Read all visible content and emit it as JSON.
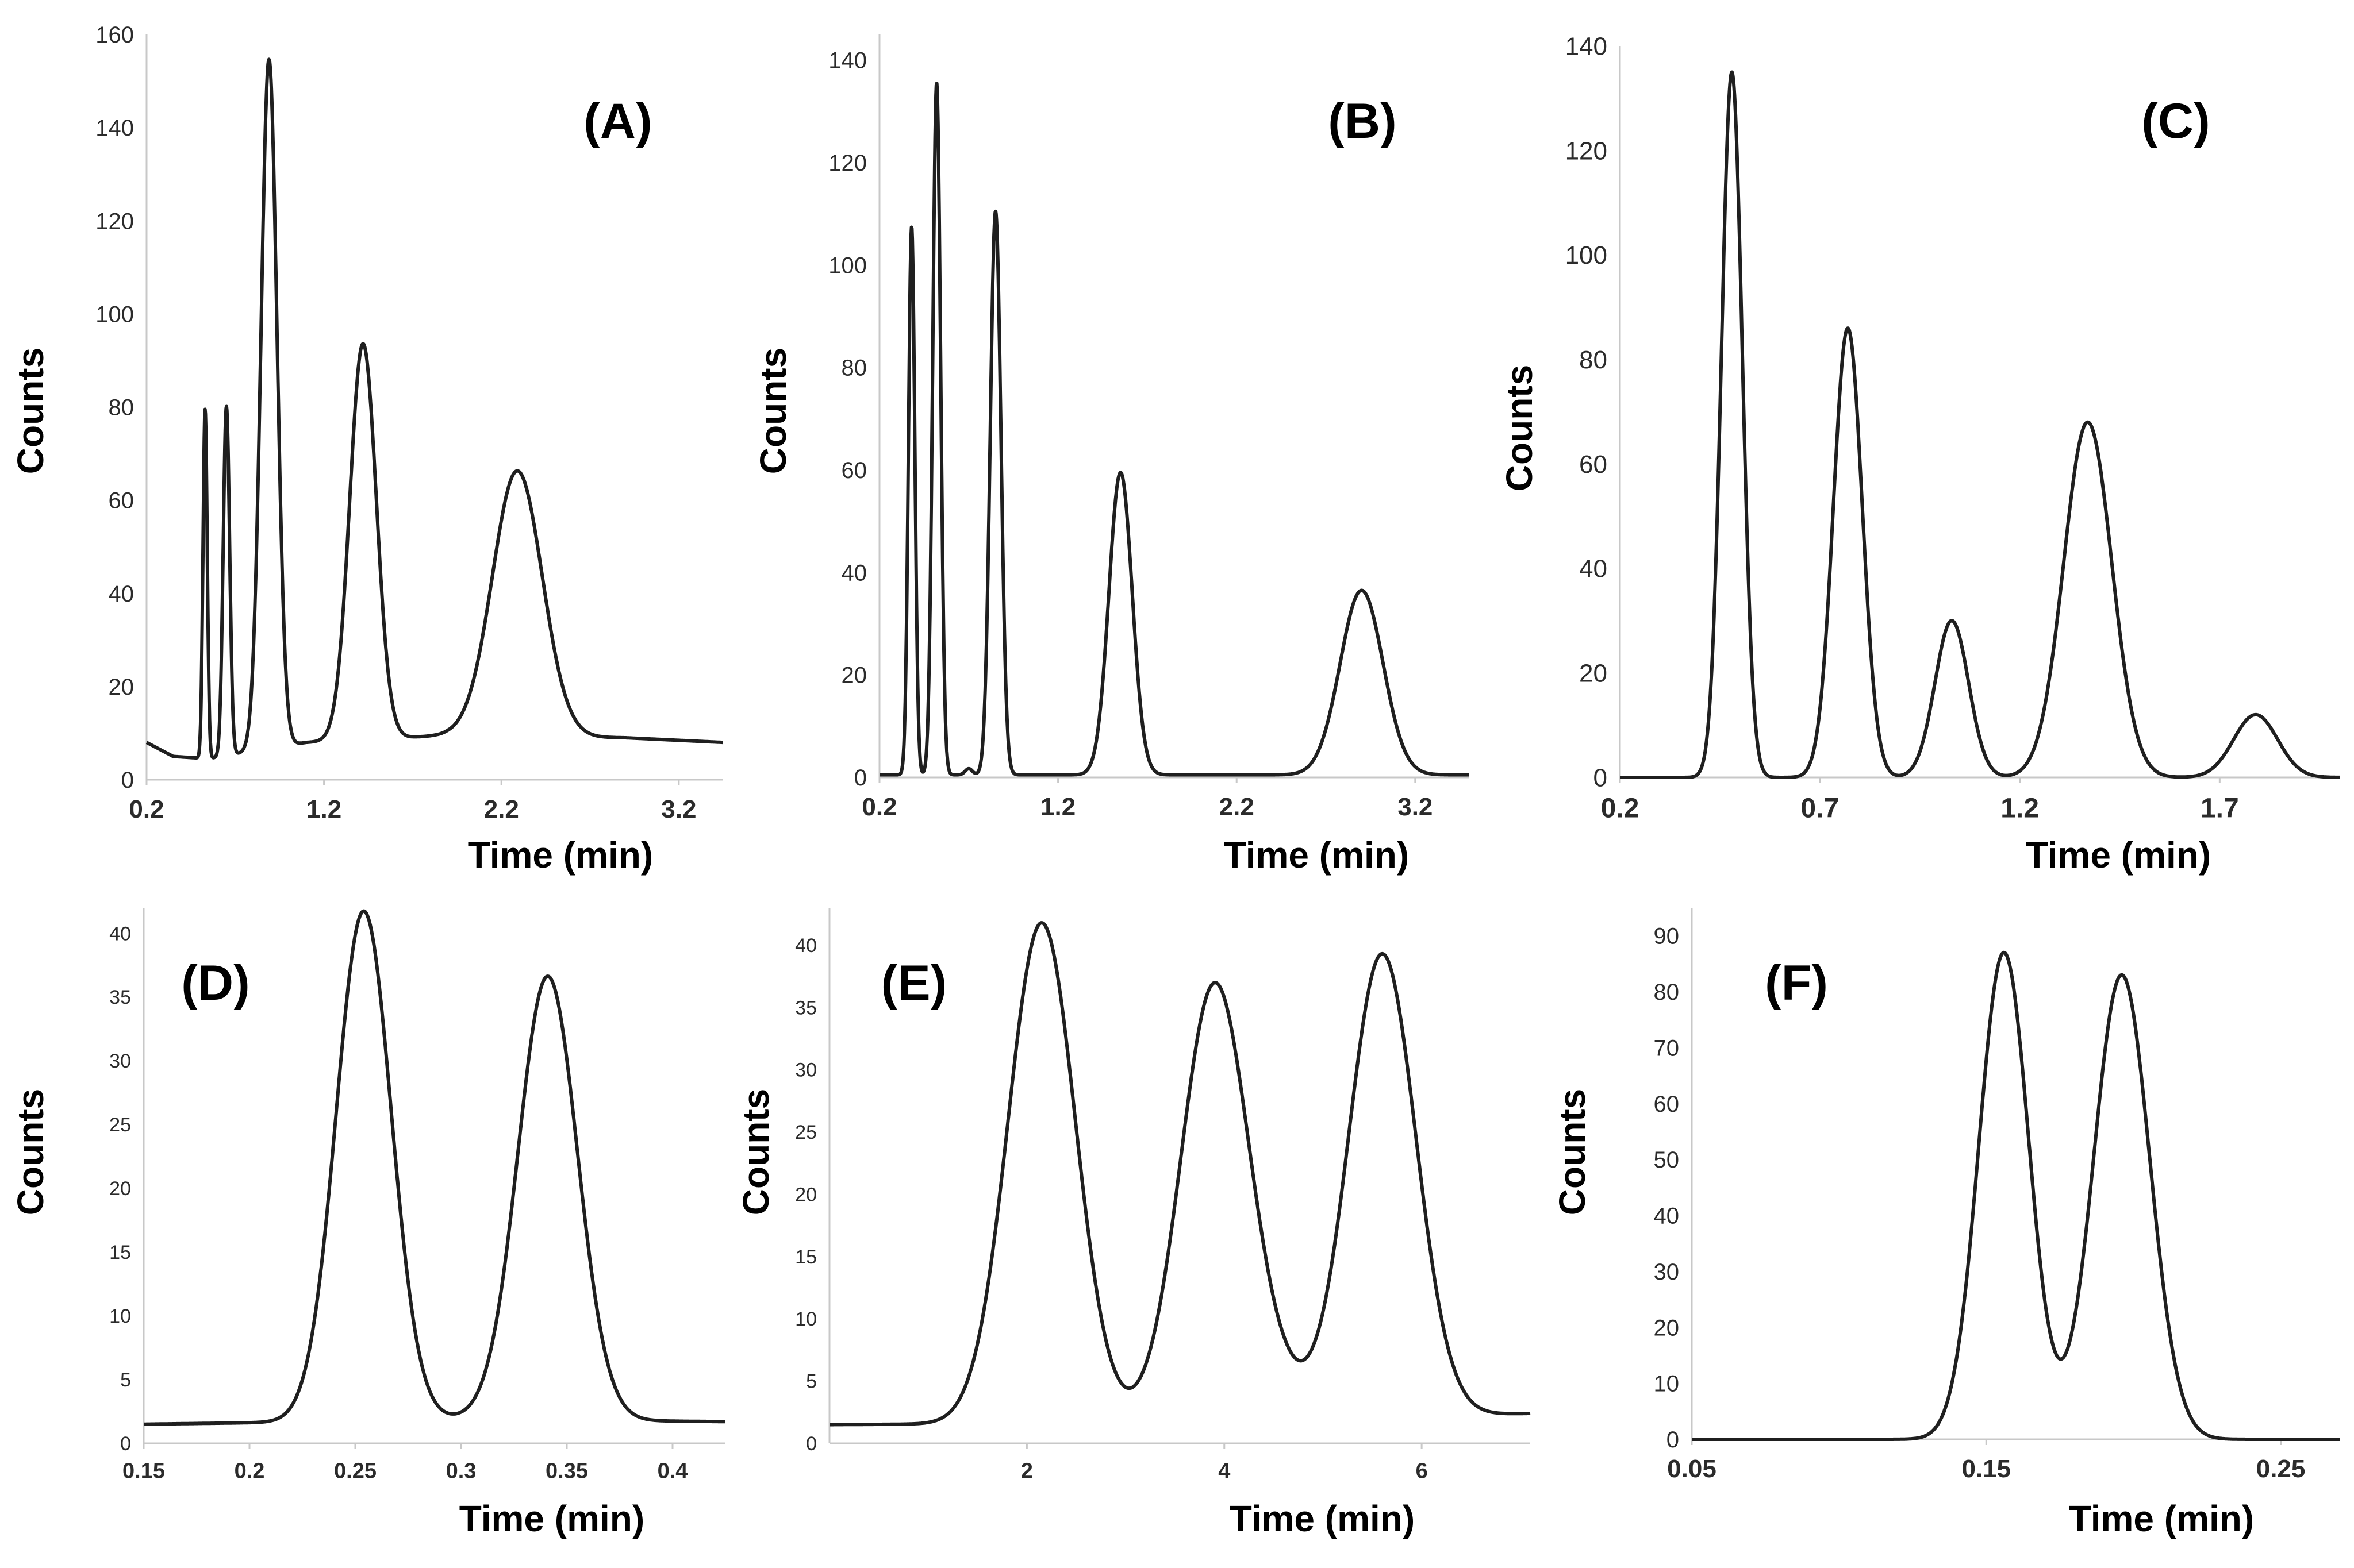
{
  "chart_data": [
    {
      "id": "A",
      "type": "line",
      "label": "(A)",
      "xlabel": "Time (min)",
      "ylabel": "Counts",
      "xlim": [
        0.2,
        3.45
      ],
      "ylim": [
        0,
        160
      ],
      "xticks": [
        "0.2",
        "1.2",
        "2.2",
        "3.2"
      ],
      "yticks": [
        "0",
        "20",
        "40",
        "60",
        "80",
        "100",
        "120",
        "140",
        "160"
      ],
      "baseline": [
        [
          0.2,
          8
        ],
        [
          0.35,
          5
        ],
        [
          0.55,
          4.5
        ],
        [
          1.1,
          8
        ],
        [
          1.9,
          9.5
        ],
        [
          2.9,
          9
        ],
        [
          3.45,
          8
        ]
      ],
      "series": [
        {
          "name": "trace",
          "peaks": [
            {
              "t": 0.53,
              "h": 75,
              "w": 0.012
            },
            {
              "t": 0.65,
              "h": 75,
              "w": 0.018
            },
            {
              "t": 0.89,
              "h": 148,
              "w": 0.045
            },
            {
              "t": 1.42,
              "h": 85,
              "w": 0.075
            },
            {
              "t": 2.29,
              "h": 57,
              "w": 0.14
            }
          ]
        }
      ]
    },
    {
      "id": "B",
      "type": "line",
      "label": "(B)",
      "xlabel": "Time (min)",
      "ylabel": "Counts",
      "xlim": [
        0.2,
        3.5
      ],
      "ylim": [
        0,
        145
      ],
      "xticks": [
        "0.2",
        "1.2",
        "2.2",
        "3.2"
      ],
      "yticks": [
        "0",
        "20",
        "40",
        "60",
        "80",
        "100",
        "120",
        "140"
      ],
      "baseline": [
        [
          0.2,
          0.5
        ],
        [
          3.5,
          0.5
        ]
      ],
      "series": [
        {
          "name": "trace",
          "peaks": [
            {
              "t": 0.38,
              "h": 107,
              "w": 0.018
            },
            {
              "t": 0.52,
              "h": 135,
              "w": 0.022
            },
            {
              "t": 0.7,
              "h": 1.2,
              "w": 0.02
            },
            {
              "t": 0.85,
              "h": 110,
              "w": 0.03
            },
            {
              "t": 1.55,
              "h": 59,
              "w": 0.065
            },
            {
              "t": 2.9,
              "h": 36,
              "w": 0.12
            }
          ]
        }
      ]
    },
    {
      "id": "C",
      "type": "line",
      "label": "(C)",
      "xlabel": "Time (min)",
      "ylabel": "Counts",
      "xlim": [
        0.2,
        2.0
      ],
      "ylim": [
        0,
        140
      ],
      "xticks": [
        "0.2",
        "0.7",
        "1.2",
        "1.7"
      ],
      "yticks": [
        "0",
        "20",
        "40",
        "60",
        "80",
        "100",
        "120",
        "140"
      ],
      "baseline": [
        [
          0.2,
          0
        ],
        [
          2.0,
          0
        ]
      ],
      "series": [
        {
          "name": "trace",
          "peaks": [
            {
              "t": 0.48,
              "h": 135,
              "w": 0.026
            },
            {
              "t": 0.77,
              "h": 86,
              "w": 0.036
            },
            {
              "t": 1.03,
              "h": 30,
              "w": 0.042
            },
            {
              "t": 1.37,
              "h": 68,
              "w": 0.06
            },
            {
              "t": 1.79,
              "h": 12,
              "w": 0.055
            }
          ]
        }
      ]
    },
    {
      "id": "D",
      "type": "line",
      "label": "(D)",
      "xlabel": "Time (min)",
      "ylabel": "Counts",
      "xlim": [
        0.15,
        0.425
      ],
      "ylim": [
        0,
        42
      ],
      "xticks": [
        "0.15",
        "0.2",
        "0.25",
        "0.3",
        "0.35",
        "0.4"
      ],
      "yticks": [
        "0",
        "5",
        "10",
        "15",
        "20",
        "25",
        "30",
        "35",
        "40"
      ],
      "baseline": [
        [
          0.15,
          1.5
        ],
        [
          0.24,
          1.7
        ],
        [
          0.3,
          1.9
        ],
        [
          0.425,
          1.7
        ]
      ],
      "series": [
        {
          "name": "trace",
          "peaks": [
            {
              "t": 0.254,
              "h": 40,
              "w": 0.013
            },
            {
              "t": 0.341,
              "h": 34.8,
              "w": 0.014
            }
          ]
        }
      ]
    },
    {
      "id": "E",
      "type": "line",
      "label": "(E)",
      "xlabel": "Time (min)",
      "ylabel": "Counts",
      "xlim": [
        0,
        7.1
      ],
      "ylim": [
        0,
        43
      ],
      "xticks": [
        "2",
        "4",
        "6"
      ],
      "yticks": [
        "0",
        "5",
        "10",
        "15",
        "20",
        "25",
        "30",
        "35",
        "40"
      ],
      "baseline": [
        [
          0,
          1.5
        ],
        [
          2.2,
          1.6
        ],
        [
          4,
          1.8
        ],
        [
          7.1,
          2.4
        ]
      ],
      "series": [
        {
          "name": "trace",
          "peaks": [
            {
              "t": 2.15,
              "h": 40.2,
              "w": 0.34
            },
            {
              "t": 3.9,
              "h": 34.9,
              "w": 0.34
            },
            {
              "t": 4.5,
              "h": 2.2,
              "w": 0.3
            },
            {
              "t": 5.6,
              "h": 37.2,
              "w": 0.34
            }
          ]
        }
      ]
    },
    {
      "id": "F",
      "type": "line",
      "label": "(F)",
      "xlabel": "Time (min)",
      "ylabel": "Counts",
      "xlim": [
        0.05,
        0.27
      ],
      "ylim": [
        0,
        95
      ],
      "xticks": [
        "0.05",
        "0.15",
        "0.25"
      ],
      "yticks": [
        "0",
        "10",
        "20",
        "30",
        "40",
        "50",
        "60",
        "70",
        "80",
        "90"
      ],
      "baseline": [
        [
          0.05,
          0
        ],
        [
          0.27,
          0
        ]
      ],
      "series": [
        {
          "name": "trace",
          "peaks": [
            {
              "t": 0.156,
              "h": 87,
              "w": 0.0085
            },
            {
              "t": 0.196,
              "h": 83,
              "w": 0.0095
            }
          ]
        }
      ]
    }
  ]
}
